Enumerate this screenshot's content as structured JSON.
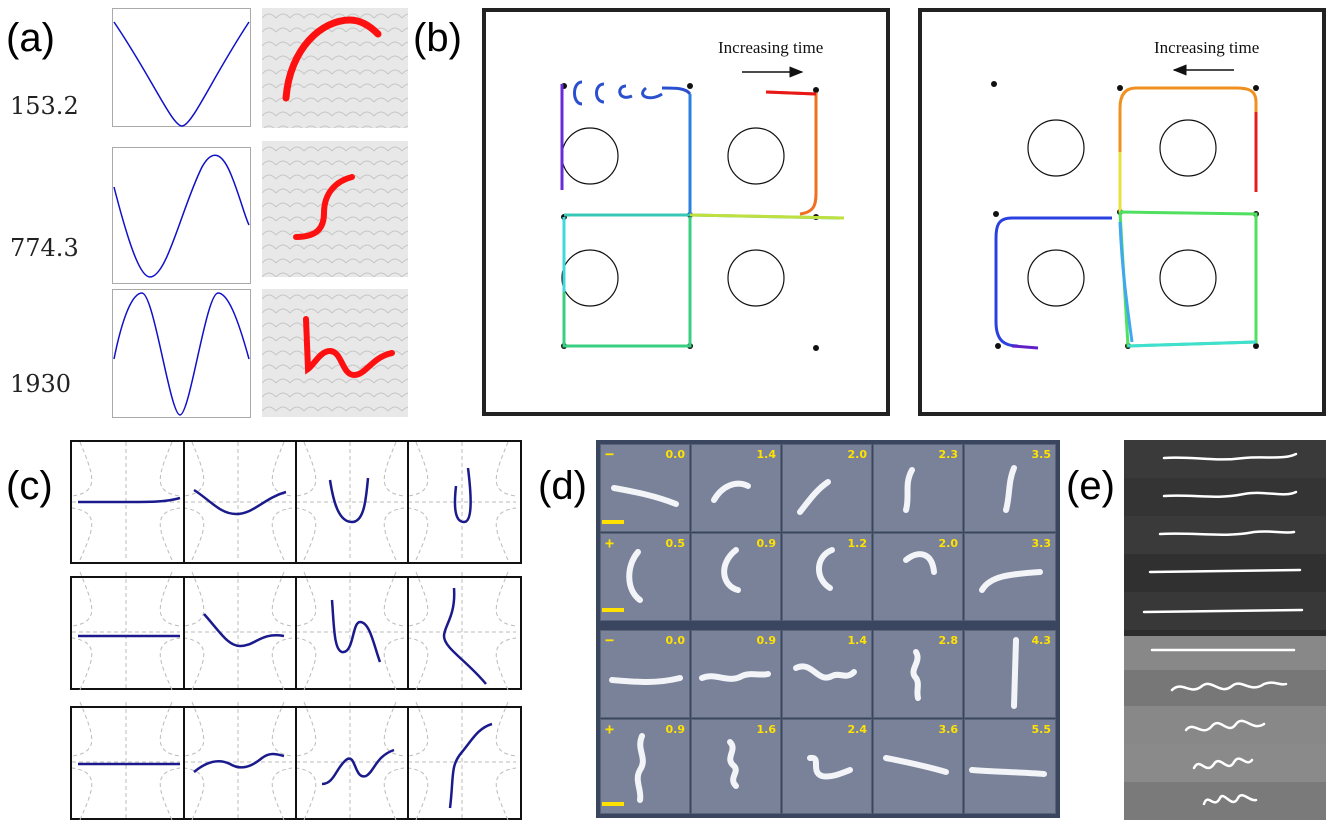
{
  "panels": {
    "a": {
      "label": "(a)",
      "values": [
        "153.2",
        "774.3",
        "1930"
      ]
    },
    "b": {
      "label": "(b)",
      "left_caption": "Increasing time",
      "right_caption": "Increasing time"
    },
    "c": {
      "label": "(c)"
    },
    "d": {
      "label": "(d)",
      "rows": [
        {
          "sign": "−",
          "times": [
            "0.0",
            "1.4",
            "2.0",
            "2.3",
            "3.5"
          ]
        },
        {
          "sign": "+",
          "times": [
            "0.5",
            "0.9",
            "1.2",
            "2.0",
            "3.3"
          ]
        },
        {
          "sign": "−",
          "times": [
            "0.0",
            "0.9",
            "1.4",
            "2.8",
            "4.3"
          ]
        },
        {
          "sign": "+",
          "times": [
            "0.9",
            "1.6",
            "2.4",
            "3.6",
            "5.5"
          ]
        }
      ]
    },
    "e": {
      "label": "(e)"
    }
  },
  "colors": {
    "wave_blue": "#1010c8",
    "trace_red": "#ff1010",
    "frame": "#222222",
    "curve_navy": "#1a1a8c",
    "d_label": "#ffe200"
  }
}
